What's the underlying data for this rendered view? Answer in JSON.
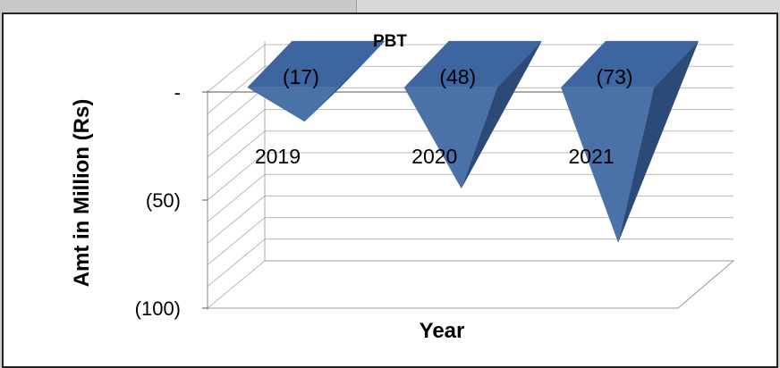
{
  "chart_data": {
    "type": "bar",
    "title": "PBT",
    "xlabel": "Year",
    "ylabel": "Amt  in Million (Rs)",
    "categories": [
      "2019",
      "2020",
      "2021"
    ],
    "values": [
      -17,
      -48,
      -73
    ],
    "data_labels": [
      "(17)",
      "(48)",
      "(73)"
    ],
    "yticks": [
      {
        "value": 0,
        "label": "-"
      },
      {
        "value": -50,
        "label": "(50)"
      },
      {
        "value": -100,
        "label": "(100)"
      }
    ],
    "ylim": [
      -100,
      0
    ],
    "grid": true,
    "legend": "none",
    "bar_color": "#4a72a8",
    "bar_side_color": "#2c4a78",
    "bar_top_color": "#3d65a0"
  }
}
